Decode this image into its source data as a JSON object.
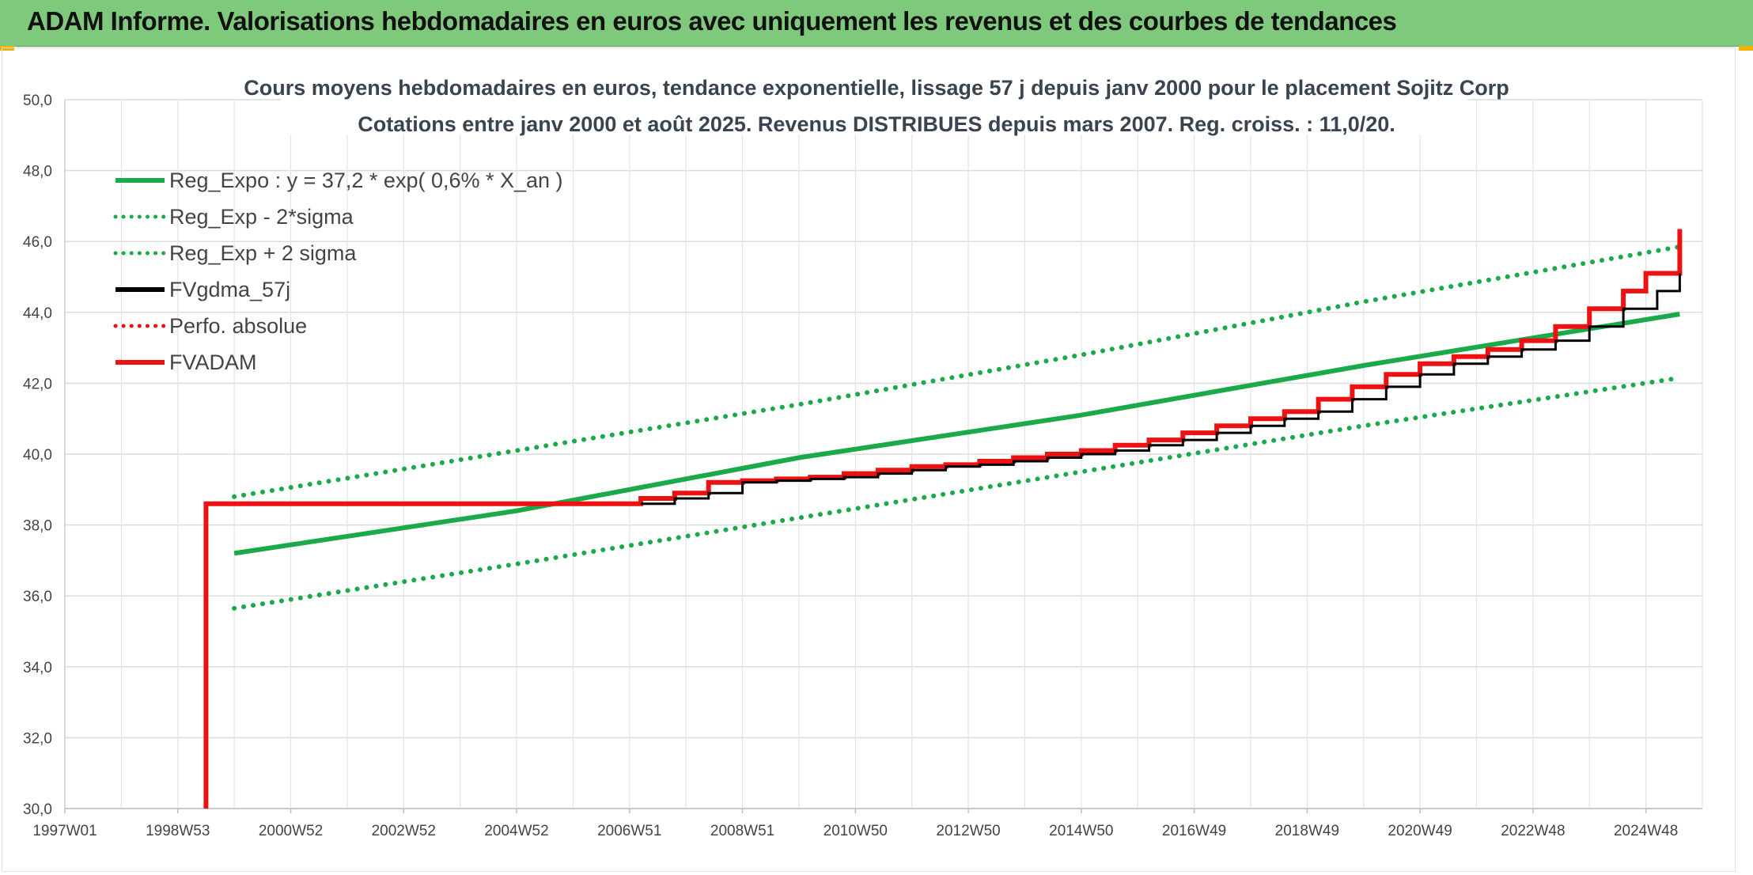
{
  "header": {
    "title": "ADAM Informe. Valorisations hebdomadaires en euros avec uniquement les revenus et des courbes de tendances"
  },
  "chart_data": {
    "type": "line",
    "title": "Cours moyens hebdomadaires en euros, tendance exponentielle, lissage 57 j depuis janv 2000 pour le placement Sojitz Corp",
    "subtitle": "Cotations entre janv 2000 et août 2025. Revenus DISTRIBUES depuis mars 2007. Reg. croiss. : 11,0/20.",
    "xlabel": "",
    "ylabel": "",
    "ylim": [
      30,
      50
    ],
    "xlim": [
      1997.0,
      2026.0
    ],
    "yticks": [
      "30,0",
      "32,0",
      "34,0",
      "36,0",
      "38,0",
      "40,0",
      "42,0",
      "44,0",
      "46,0",
      "48,0",
      "50,0"
    ],
    "x_tick_labels": [
      "1997W01",
      "1998W53",
      "2000W52",
      "2002W52",
      "2004W52",
      "2006W51",
      "2008W51",
      "2010W50",
      "2012W50",
      "2014W50",
      "2016W49",
      "2018W49",
      "2020W49",
      "2022W48",
      "2024W48"
    ],
    "grid": true,
    "legend_position": "top-left",
    "colors": {
      "green": "#1aaa4a",
      "black": "#000000",
      "red": "#ee1111"
    },
    "legend": [
      {
        "label": "Reg_Expo : y = 37,2 * exp( 0,6% *  X_an )",
        "color": "#1aaa4a",
        "style": "solid"
      },
      {
        "label": "Reg_Exp - 2*sigma",
        "color": "#1aaa4a",
        "style": "dotted"
      },
      {
        "label": "Reg_Exp + 2 sigma",
        "color": "#1aaa4a",
        "style": "dotted"
      },
      {
        "label": "FVgdma_57j",
        "color": "#000000",
        "style": "solid"
      },
      {
        "label": "Perfo. absolue",
        "color": "#ee1111",
        "style": "dotted"
      },
      {
        "label": "FVADAM",
        "color": "#ee1111",
        "style": "solid"
      }
    ],
    "series": [
      {
        "name": "Reg_Expo : y = 37,2 * exp( 0,6% *  X_an )",
        "color": "#1aaa4a",
        "style": "solid",
        "x": [
          2000.0,
          2005.0,
          2010.0,
          2015.0,
          2020.0,
          2025.6
        ],
        "values": [
          37.2,
          38.4,
          39.9,
          41.1,
          42.5,
          43.95
        ]
      },
      {
        "name": "Reg_Exp - 2*sigma",
        "color": "#1aaa4a",
        "style": "dotted",
        "x": [
          2000.0,
          2005.0,
          2010.0,
          2015.0,
          2020.0,
          2025.6
        ],
        "values": [
          35.65,
          36.9,
          38.2,
          39.5,
          40.8,
          42.15
        ]
      },
      {
        "name": "Reg_Exp + 2 sigma",
        "color": "#1aaa4a",
        "style": "dotted",
        "x": [
          2000.0,
          2005.0,
          2010.0,
          2015.0,
          2020.0,
          2025.6
        ],
        "values": [
          38.8,
          40.1,
          41.4,
          42.8,
          44.3,
          45.85
        ]
      },
      {
        "name": "FVgdma_57j",
        "color": "#000000",
        "style": "solid",
        "step": true,
        "x": [
          2007.2,
          2007.8,
          2008.4,
          2009.0,
          2009.6,
          2010.2,
          2010.8,
          2011.4,
          2012.0,
          2012.6,
          2013.2,
          2013.8,
          2014.4,
          2015.0,
          2015.6,
          2016.2,
          2016.8,
          2017.4,
          2018.0,
          2018.6,
          2019.2,
          2019.8,
          2020.4,
          2021.0,
          2021.6,
          2022.2,
          2022.8,
          2023.4,
          2024.0,
          2024.6,
          2025.2,
          2025.6
        ],
        "values": [
          38.6,
          38.75,
          38.9,
          39.2,
          39.25,
          39.3,
          39.35,
          39.45,
          39.55,
          39.65,
          39.7,
          39.8,
          39.9,
          40.0,
          40.1,
          40.25,
          40.4,
          40.6,
          40.8,
          41.0,
          41.2,
          41.55,
          41.9,
          42.25,
          42.55,
          42.75,
          42.95,
          43.2,
          43.6,
          44.1,
          44.6,
          45.1
        ]
      },
      {
        "name": "FVADAM",
        "color": "#ee1111",
        "style": "solid",
        "step": true,
        "x": [
          1999.5,
          1999.5,
          2006.7,
          2007.2,
          2007.8,
          2008.4,
          2009.0,
          2009.6,
          2010.2,
          2010.8,
          2011.4,
          2012.0,
          2012.6,
          2013.2,
          2013.8,
          2014.4,
          2015.0,
          2015.6,
          2016.2,
          2016.8,
          2017.4,
          2018.0,
          2018.6,
          2019.2,
          2019.8,
          2020.4,
          2021.0,
          2021.6,
          2022.2,
          2022.8,
          2023.4,
          2024.0,
          2024.6,
          2025.0,
          2025.6
        ],
        "values": [
          30.0,
          38.6,
          38.6,
          38.75,
          38.9,
          39.2,
          39.25,
          39.3,
          39.35,
          39.45,
          39.55,
          39.65,
          39.7,
          39.8,
          39.9,
          40.0,
          40.1,
          40.25,
          40.4,
          40.6,
          40.8,
          41.0,
          41.2,
          41.55,
          41.9,
          42.25,
          42.55,
          42.75,
          42.95,
          43.2,
          43.6,
          44.1,
          44.6,
          45.1,
          46.35
        ]
      }
    ]
  }
}
